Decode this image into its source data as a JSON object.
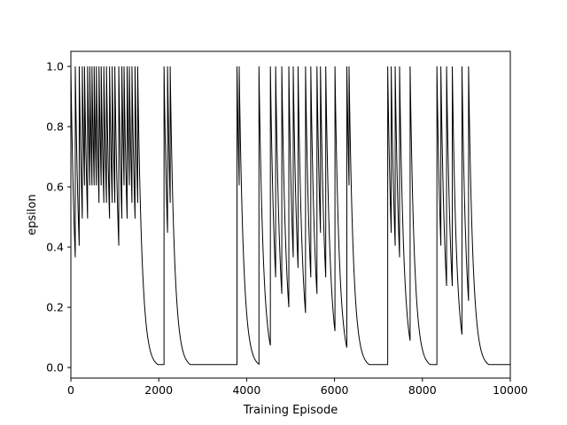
{
  "chart_data": {
    "type": "line",
    "title": "",
    "xlabel": "Training Episode",
    "ylabel": "epsilon",
    "xlim": [
      0,
      10000
    ],
    "ylim": [
      -0.035,
      1.05
    ],
    "xticks": [
      0,
      2000,
      4000,
      6000,
      8000,
      10000
    ],
    "xtick_labels": [
      "0",
      "2000",
      "4000",
      "6000",
      "8000",
      "10000"
    ],
    "yticks": [
      0.0,
      0.2,
      0.4,
      0.6,
      0.8,
      1.0
    ],
    "ytick_labels": [
      "0.0",
      "0.2",
      "0.4",
      "0.6",
      "0.8",
      "1.0"
    ],
    "grid": false,
    "line_color": "#000000",
    "series": [
      {
        "epsilon_min": 0.01,
        "decay_per_episode": 0.99,
        "x_end": 10000,
        "reset_episodes": [
          0,
          100,
          190,
          260,
          310,
          380,
          430,
          480,
          530,
          580,
          640,
          690,
          750,
          810,
          880,
          940,
          1000,
          1090,
          1160,
          1210,
          1280,
          1330,
          1390,
          1460,
          1520,
          2120,
          2200,
          2260,
          3780,
          3830,
          4280,
          4540,
          4660,
          4800,
          4960,
          5060,
          5170,
          5340,
          5460,
          5600,
          5680,
          5800,
          6010,
          6280,
          6330,
          7210,
          7290,
          7380,
          7480,
          7720,
          8330,
          8420,
          8550,
          8680,
          8900,
          9050
        ]
      }
    ]
  }
}
